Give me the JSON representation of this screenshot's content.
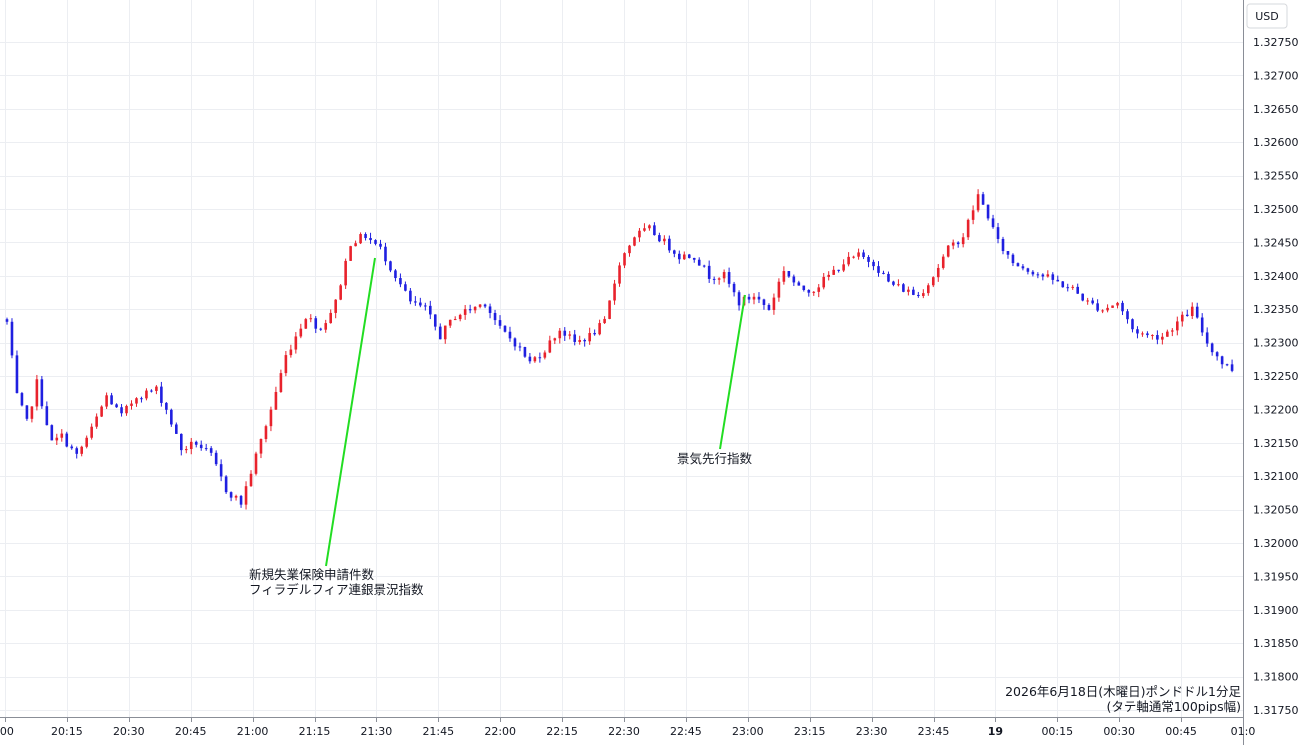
{
  "chart_data": {
    "type": "candlestick",
    "pair_currency": "USD",
    "caption": [
      "2026年6月18日(木曜日)ポンドドル1分足",
      "(タテ軸通常100pips幅)"
    ],
    "x_ticks": [
      ":00",
      "20:15",
      "20:30",
      "20:45",
      "21:00",
      "21:15",
      "21:30",
      "21:45",
      "22:00",
      "22:15",
      "22:30",
      "22:45",
      "23:00",
      "23:15",
      "23:30",
      "23:45",
      "19",
      "00:15",
      "00:30",
      "00:45",
      "01:0"
    ],
    "y_ticks": [
      "1.32750",
      "1.32700",
      "1.32650",
      "1.32600",
      "1.32550",
      "1.32500",
      "1.32450",
      "1.32400",
      "1.32350",
      "1.32300",
      "1.32250",
      "1.32200",
      "1.32150",
      "1.32100",
      "1.32050",
      "1.32000",
      "1.31950",
      "1.31900",
      "1.31850",
      "1.31800",
      "1.31750"
    ],
    "ylim": [
      1.3175,
      1.3275
    ],
    "up_color": "#e8222c",
    "down_color": "#1f1fe0",
    "grid": true,
    "annotations": [
      {
        "lines": [
          "新規失業保険申請件数",
          "フィラデルフィア連銀景況指数"
        ],
        "time": "21:30",
        "color": "#22dd22"
      },
      {
        "lines": [
          "景気先行指数"
        ],
        "time": "23:00",
        "color": "#22dd22"
      }
    ],
    "anchors": [
      [
        0,
        1.3233
      ],
      [
        2,
        1.3222
      ],
      [
        4,
        1.3218
      ],
      [
        6,
        1.3224
      ],
      [
        9,
        1.3215
      ],
      [
        11,
        1.3216
      ],
      [
        14,
        1.3213
      ],
      [
        17,
        1.3217
      ],
      [
        20,
        1.3222
      ],
      [
        23,
        1.3219
      ],
      [
        26,
        1.3222
      ],
      [
        30,
        1.3223
      ],
      [
        32,
        1.322
      ],
      [
        35,
        1.3214
      ],
      [
        38,
        1.3215
      ],
      [
        41,
        1.3213
      ],
      [
        44,
        1.3208
      ],
      [
        47,
        1.3206
      ],
      [
        50,
        1.3213
      ],
      [
        53,
        1.322
      ],
      [
        56,
        1.3228
      ],
      [
        60,
        1.3234
      ],
      [
        63,
        1.3232
      ],
      [
        66,
        1.3236
      ],
      [
        69,
        1.3245
      ],
      [
        72,
        1.3246
      ],
      [
        75,
        1.3244
      ],
      [
        78,
        1.324
      ],
      [
        81,
        1.3236
      ],
      [
        84,
        1.3235
      ],
      [
        87,
        1.3231
      ],
      [
        90,
        1.3234
      ],
      [
        93,
        1.3235
      ],
      [
        96,
        1.3236
      ],
      [
        99,
        1.3232
      ],
      [
        102,
        1.323
      ],
      [
        105,
        1.3227
      ],
      [
        108,
        1.3229
      ],
      [
        111,
        1.3232
      ],
      [
        114,
        1.323
      ],
      [
        117,
        1.3231
      ],
      [
        120,
        1.3233
      ],
      [
        123,
        1.3242
      ],
      [
        126,
        1.3246
      ],
      [
        129,
        1.3247
      ],
      [
        132,
        1.3245
      ],
      [
        135,
        1.3243
      ],
      [
        138,
        1.3243
      ],
      [
        141,
        1.324
      ],
      [
        144,
        1.324
      ],
      [
        147,
        1.3236
      ],
      [
        150,
        1.3237
      ],
      [
        153,
        1.3235
      ],
      [
        156,
        1.3241
      ],
      [
        159,
        1.3238
      ],
      [
        162,
        1.3238
      ],
      [
        165,
        1.324
      ],
      [
        168,
        1.3242
      ],
      [
        171,
        1.3243
      ],
      [
        174,
        1.3242
      ],
      [
        177,
        1.3239
      ],
      [
        180,
        1.3238
      ],
      [
        183,
        1.3237
      ],
      [
        186,
        1.324
      ],
      [
        189,
        1.3244
      ],
      [
        192,
        1.3246
      ],
      [
        195,
        1.3252
      ],
      [
        197,
        1.3249
      ],
      [
        199,
        1.3245
      ],
      [
        202,
        1.3242
      ],
      [
        205,
        1.3241
      ],
      [
        208,
        1.324
      ],
      [
        211,
        1.3239
      ],
      [
        214,
        1.3238
      ],
      [
        217,
        1.3236
      ],
      [
        220,
        1.3235
      ],
      [
        223,
        1.3236
      ],
      [
        226,
        1.3232
      ],
      [
        229,
        1.3231
      ],
      [
        232,
        1.3231
      ],
      [
        235,
        1.3233
      ],
      [
        238,
        1.3235
      ],
      [
        241,
        1.323
      ],
      [
        244,
        1.3227
      ],
      [
        246,
        1.3226
      ]
    ]
  }
}
